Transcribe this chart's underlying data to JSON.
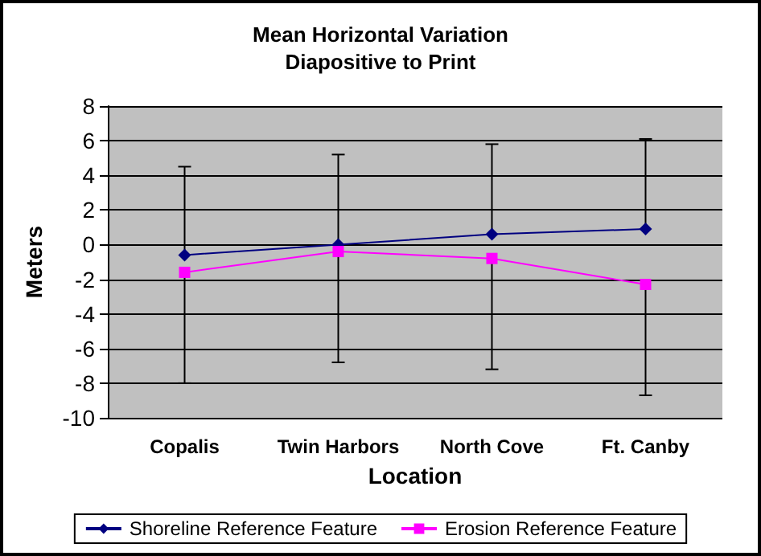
{
  "chart_data": {
    "type": "line",
    "title": "Mean Horizontal Variation\nDiapositive to Print",
    "xlabel": "Location",
    "ylabel": "Meters",
    "categories": [
      "Copalis",
      "Twin Harbors",
      "North Cove",
      "Ft. Canby"
    ],
    "series": [
      {
        "name": "Shoreline Reference Feature",
        "color": "#000080",
        "marker": "diamond",
        "values": [
          -0.6,
          0.0,
          0.6,
          0.9
        ],
        "errors": [
          [
            -0.6,
            4.5
          ],
          [
            0.0,
            5.2
          ],
          [
            0.6,
            5.8
          ],
          [
            0.9,
            6.1
          ]
        ]
      },
      {
        "name": "Erosion Reference Feature",
        "color": "#ff00ff",
        "marker": "square",
        "values": [
          -1.6,
          -0.4,
          -0.8,
          -2.3
        ],
        "errors": [
          [
            -8.0,
            -1.6
          ],
          [
            -6.8,
            -0.4
          ],
          [
            -7.2,
            -0.8
          ],
          [
            -8.7,
            -2.3
          ]
        ]
      }
    ],
    "ylim": [
      -10,
      8
    ],
    "yticks": [
      -10,
      -8,
      -6,
      -4,
      -2,
      0,
      2,
      4,
      6,
      8
    ],
    "grid": "y",
    "legend": "bottom"
  }
}
